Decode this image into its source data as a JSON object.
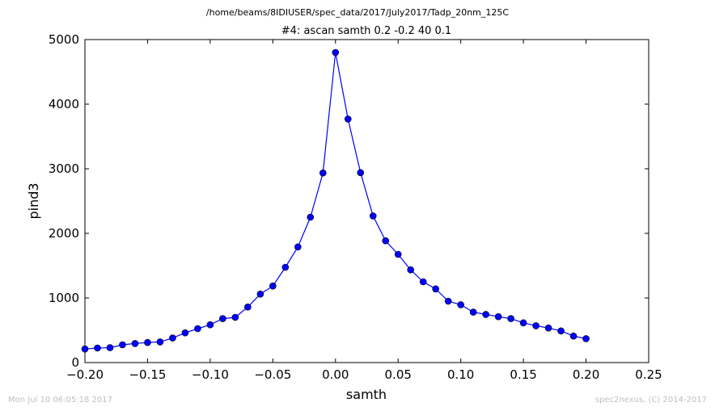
{
  "figure": {
    "path_title": "/home/beams/8IDIUSER/spec_data/2017/July2017/Tadp_20nm_125C",
    "footer_left": "Mon Jul 10 06:05:18 2017",
    "footer_right": "spec2nexus, (C) 2014-2017"
  },
  "chart_data": {
    "type": "line",
    "title": "#4: ascan  samth 0.2 -0.2  40 0.1",
    "xlabel": "samth",
    "ylabel": "pind3",
    "xlim": [
      -0.2,
      0.25
    ],
    "ylim": [
      0,
      5000
    ],
    "xticks": [
      -0.2,
      -0.15,
      -0.1,
      -0.05,
      0.0,
      0.05,
      0.1,
      0.15,
      0.2,
      0.25
    ],
    "xtick_labels": [
      "−0.20",
      "−0.15",
      "−0.10",
      "−0.05",
      "0.00",
      "0.05",
      "0.10",
      "0.15",
      "0.20",
      "0.25"
    ],
    "yticks": [
      0,
      1000,
      2000,
      3000,
      4000,
      5000
    ],
    "ytick_labels": [
      "0",
      "1000",
      "2000",
      "3000",
      "4000",
      "5000"
    ],
    "grid": false,
    "series": [
      {
        "color": "#0000ff",
        "marker": "circle",
        "x": [
          -0.2,
          -0.19,
          -0.18,
          -0.17,
          -0.16,
          -0.15,
          -0.14,
          -0.13,
          -0.12,
          -0.11,
          -0.1,
          -0.09,
          -0.08,
          -0.07,
          -0.06,
          -0.05,
          -0.04,
          -0.03,
          -0.02,
          -0.01,
          0.0,
          0.01,
          0.02,
          0.03,
          0.04,
          0.05,
          0.06,
          0.07,
          0.08,
          0.09,
          0.1,
          0.11,
          0.12,
          0.13,
          0.14,
          0.15,
          0.16,
          0.17,
          0.18,
          0.19,
          0.2
        ],
        "y": [
          210,
          225,
          230,
          275,
          295,
          310,
          320,
          380,
          460,
          525,
          585,
          680,
          700,
          860,
          1060,
          1185,
          1475,
          1790,
          2250,
          2935,
          4800,
          3770,
          2940,
          2270,
          1885,
          1675,
          1435,
          1250,
          1140,
          950,
          895,
          780,
          745,
          710,
          680,
          615,
          570,
          535,
          490,
          410,
          370
        ]
      }
    ]
  }
}
